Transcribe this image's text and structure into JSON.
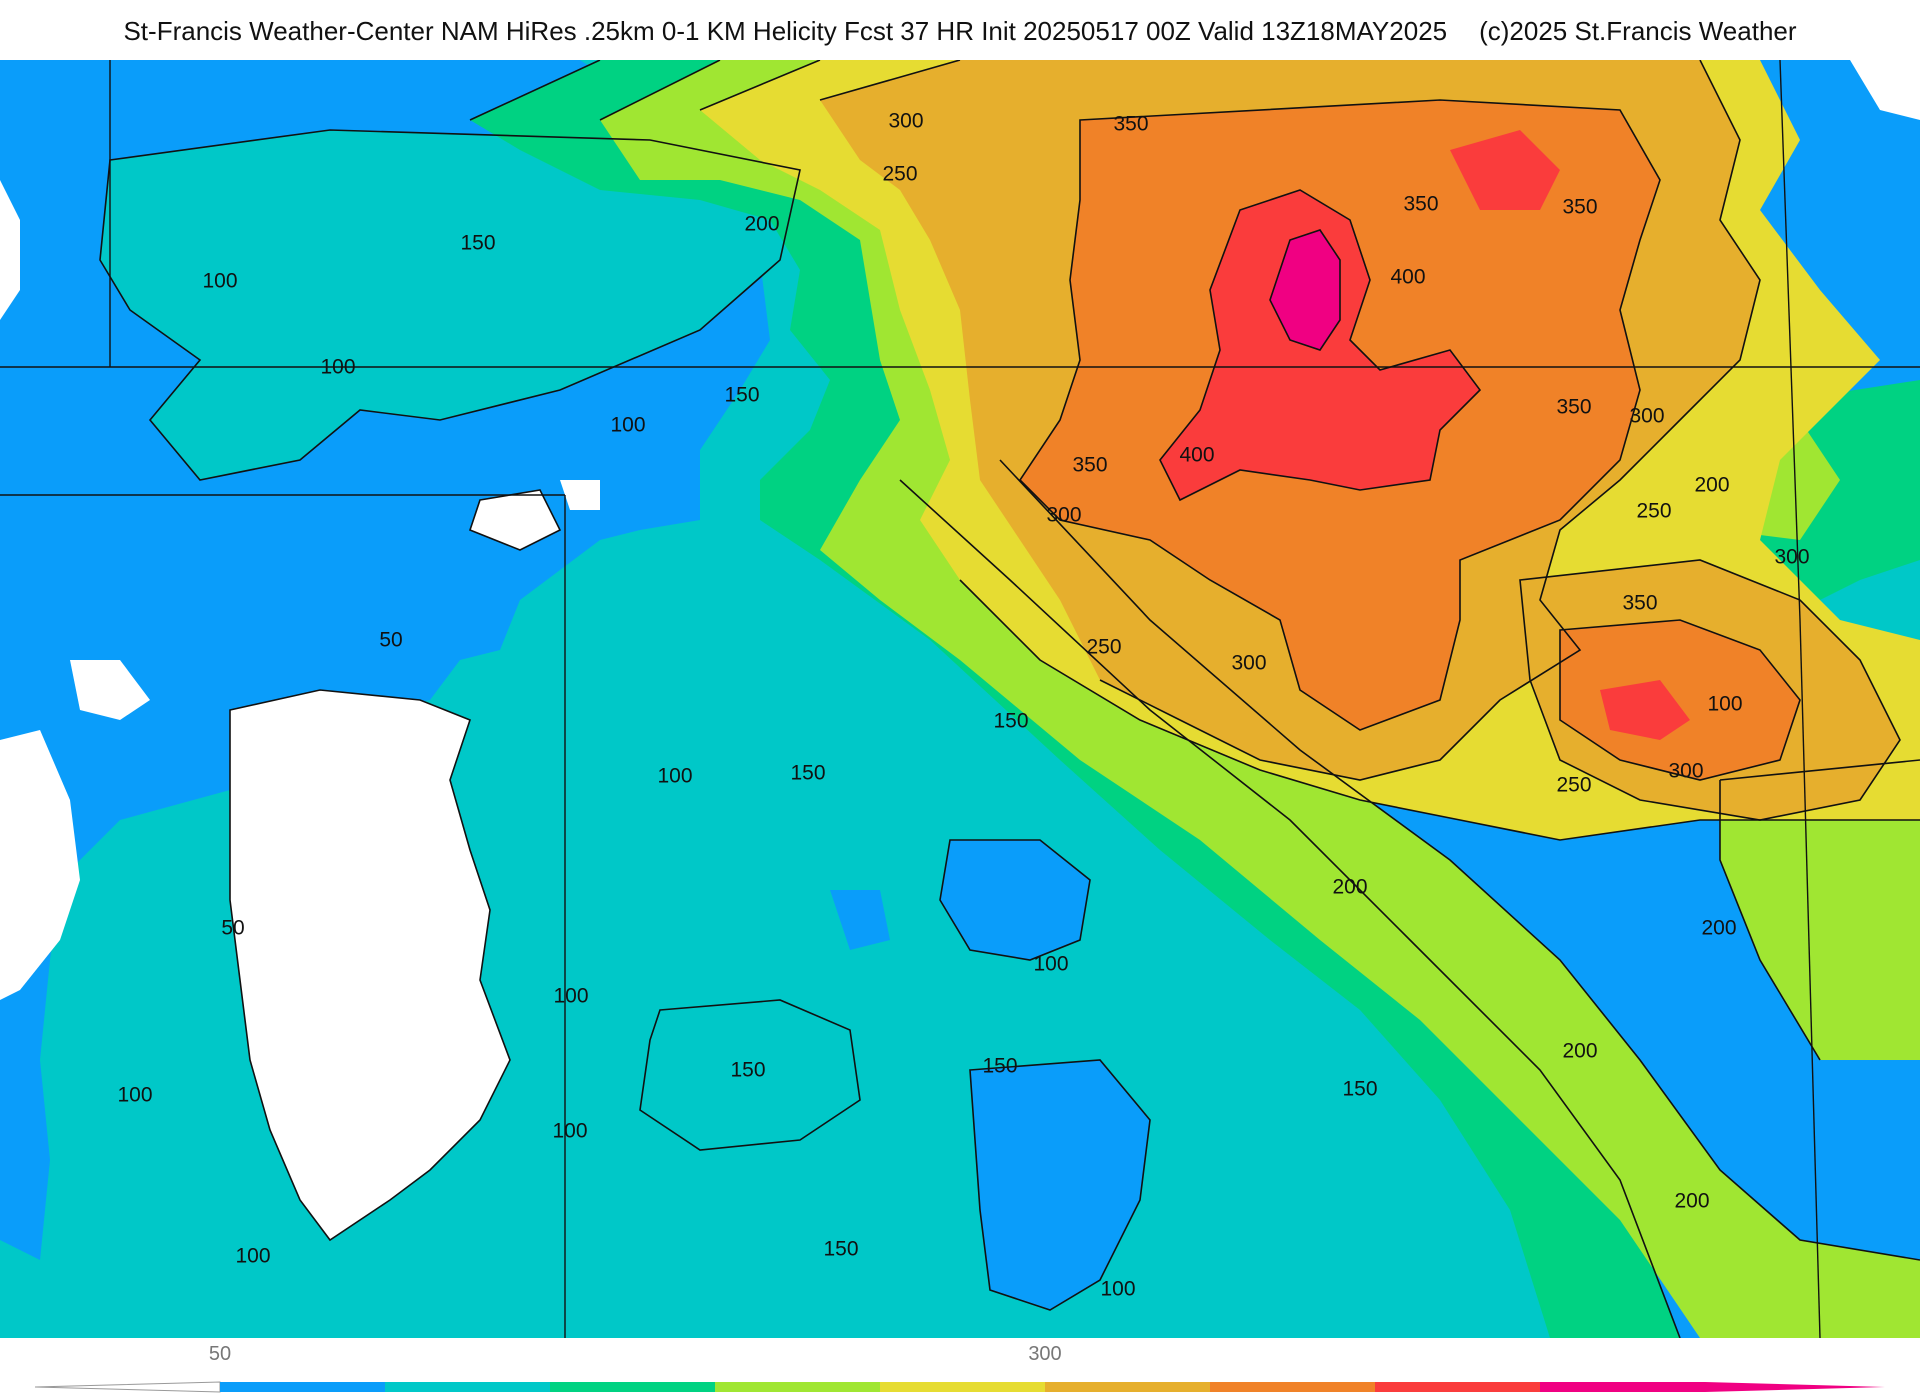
{
  "header": {
    "title": "St-Francis Weather-Center NAM HiRes .25km 0-1 KM Helicity Fcst 37 HR Init 20250517 00Z  Valid 13Z18MAY2025",
    "copyright": "(c)2025 St.Francis Weather"
  },
  "colors": {
    "c50": "#ffffff",
    "c100": "#0a9dfa",
    "c150": "#00c8c8",
    "c200": "#00d282",
    "c250": "#a0e632",
    "c300": "#e6dc32",
    "c350": "#e6af2d",
    "c400": "#f08228",
    "c450": "#fa3c3c",
    "c500": "#f00082",
    "outline": "#111111",
    "boundary": "#bcbcbc"
  },
  "colorbar": {
    "labels": [
      {
        "text": "50",
        "value": 50
      },
      {
        "text": "300",
        "value": 300
      }
    ],
    "stops": [
      {
        "from": 50,
        "to": 100,
        "color": "#0a9dfa"
      },
      {
        "from": 100,
        "to": 150,
        "color": "#00c8c8"
      },
      {
        "from": 150,
        "to": 200,
        "color": "#00d282"
      },
      {
        "from": 200,
        "to": 250,
        "color": "#a0e632"
      },
      {
        "from": 250,
        "to": 300,
        "color": "#e6dc32"
      },
      {
        "from": 300,
        "to": 350,
        "color": "#e6af2d"
      },
      {
        "from": 350,
        "to": 400,
        "color": "#f08228"
      },
      {
        "from": 400,
        "to": 450,
        "color": "#fa3c3c"
      },
      {
        "from": 450,
        "to": 500,
        "color": "#f00082"
      }
    ]
  },
  "contour_labels": [
    "300",
    "350",
    "250",
    "200",
    "350",
    "350",
    "150",
    "400",
    "100",
    "100",
    "150",
    "100",
    "350",
    "400",
    "350",
    "300",
    "200",
    "250",
    "300",
    "350",
    "300",
    "250",
    "150",
    "100",
    "50",
    "300",
    "150",
    "100",
    "250",
    "300",
    "200",
    "50",
    "100",
    "100",
    "200",
    "150",
    "100",
    "200",
    "150",
    "100",
    "150",
    "200",
    "100",
    "150",
    "100"
  ]
}
